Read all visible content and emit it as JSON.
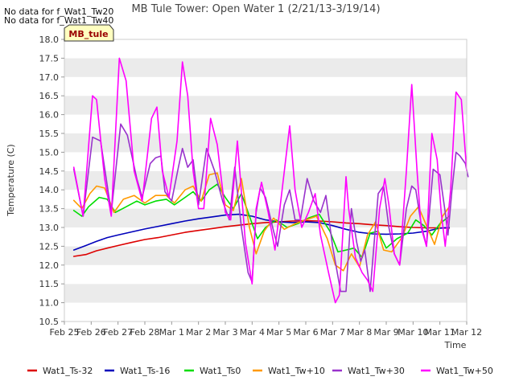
{
  "notes": [
    "No data for f_Wat1_Tw20",
    "No data for f_Wat1_Tw40"
  ],
  "badge": "MB_tule",
  "chart_data": {
    "type": "line",
    "title": "MB Tule Tower: Open Water 1 (2/21/13-3/19/14)",
    "xlabel": "Time",
    "ylabel": "Temperature (C)",
    "ylim": [
      10.5,
      18.0
    ],
    "yticks": [
      "10.5",
      "11.0",
      "11.5",
      "12.0",
      "12.5",
      "13.0",
      "13.5",
      "14.0",
      "14.5",
      "15.0",
      "15.5",
      "16.0",
      "16.5",
      "17.0",
      "17.5",
      "18.0"
    ],
    "xlim": [
      0,
      15
    ],
    "xticks": [
      "Feb 25",
      "Feb 26",
      "Feb 27",
      "Feb 28",
      "Mar 1",
      "Mar 2",
      "Mar 3",
      "Mar 4",
      "Mar 5",
      "Mar 6",
      "Mar 7",
      "Mar 8",
      "Mar 9",
      "Mar 10",
      "Mar 11",
      "Mar 12"
    ],
    "legend_position": "bottom",
    "grid": "horizontal bands",
    "series": [
      {
        "name": "Wat1_Ts-32",
        "color": "#dd0000",
        "points": [
          [
            0.35,
            12.23
          ],
          [
            0.8,
            12.28
          ],
          [
            1.2,
            12.38
          ],
          [
            1.6,
            12.45
          ],
          [
            2.0,
            12.52
          ],
          [
            2.5,
            12.6
          ],
          [
            3.0,
            12.68
          ],
          [
            3.5,
            12.73
          ],
          [
            4.0,
            12.8
          ],
          [
            4.5,
            12.87
          ],
          [
            5.0,
            12.92
          ],
          [
            5.5,
            12.97
          ],
          [
            6.0,
            13.02
          ],
          [
            6.5,
            13.06
          ],
          [
            7.0,
            13.1
          ],
          [
            7.5,
            13.13
          ],
          [
            8.0,
            13.15
          ],
          [
            8.5,
            13.17
          ],
          [
            9.0,
            13.18
          ],
          [
            9.5,
            13.17
          ],
          [
            10.0,
            13.15
          ],
          [
            10.5,
            13.12
          ],
          [
            11.0,
            13.1
          ],
          [
            11.5,
            13.07
          ],
          [
            12.0,
            13.05
          ],
          [
            12.5,
            13.02
          ],
          [
            13.0,
            13.0
          ],
          [
            13.5,
            12.99
          ],
          [
            14.0,
            12.99
          ],
          [
            14.35,
            12.98
          ]
        ]
      },
      {
        "name": "Wat1_Ts-16",
        "color": "#0000bb",
        "points": [
          [
            0.35,
            12.4
          ],
          [
            0.8,
            12.52
          ],
          [
            1.2,
            12.63
          ],
          [
            1.6,
            12.73
          ],
          [
            2.0,
            12.8
          ],
          [
            2.5,
            12.88
          ],
          [
            3.0,
            12.96
          ],
          [
            3.5,
            13.03
          ],
          [
            4.0,
            13.1
          ],
          [
            4.5,
            13.17
          ],
          [
            5.0,
            13.23
          ],
          [
            5.5,
            13.28
          ],
          [
            6.0,
            13.33
          ],
          [
            6.5,
            13.35
          ],
          [
            7.0,
            13.3
          ],
          [
            7.5,
            13.2
          ],
          [
            8.0,
            13.15
          ],
          [
            8.5,
            13.13
          ],
          [
            9.0,
            13.15
          ],
          [
            9.5,
            13.13
          ],
          [
            10.0,
            13.05
          ],
          [
            10.5,
            12.95
          ],
          [
            11.0,
            12.87
          ],
          [
            11.5,
            12.83
          ],
          [
            12.0,
            12.82
          ],
          [
            12.5,
            12.83
          ],
          [
            13.0,
            12.85
          ],
          [
            13.5,
            12.9
          ],
          [
            14.0,
            12.98
          ],
          [
            14.35,
            13.0
          ]
        ]
      },
      {
        "name": "Wat1_Ts0",
        "color": "#00dd00",
        "points": [
          [
            0.35,
            13.45
          ],
          [
            0.65,
            13.3
          ],
          [
            0.9,
            13.55
          ],
          [
            1.3,
            13.8
          ],
          [
            1.6,
            13.75
          ],
          [
            1.9,
            13.4
          ],
          [
            2.3,
            13.55
          ],
          [
            2.7,
            13.7
          ],
          [
            3.0,
            13.6
          ],
          [
            3.4,
            13.7
          ],
          [
            3.8,
            13.75
          ],
          [
            4.1,
            13.6
          ],
          [
            4.5,
            13.8
          ],
          [
            4.8,
            13.95
          ],
          [
            5.1,
            13.7
          ],
          [
            5.4,
            14.0
          ],
          [
            5.7,
            14.15
          ],
          [
            6.0,
            13.8
          ],
          [
            6.3,
            13.5
          ],
          [
            6.6,
            13.9
          ],
          [
            6.9,
            13.3
          ],
          [
            7.2,
            12.7
          ],
          [
            7.5,
            13.0
          ],
          [
            7.9,
            13.2
          ],
          [
            8.3,
            13.0
          ],
          [
            8.7,
            13.1
          ],
          [
            9.1,
            13.25
          ],
          [
            9.5,
            13.35
          ],
          [
            9.9,
            12.9
          ],
          [
            10.2,
            12.35
          ],
          [
            10.5,
            12.4
          ],
          [
            10.8,
            12.45
          ],
          [
            11.1,
            12.2
          ],
          [
            11.4,
            12.85
          ],
          [
            11.7,
            12.9
          ],
          [
            12.0,
            12.45
          ],
          [
            12.4,
            12.7
          ],
          [
            12.8,
            12.85
          ],
          [
            13.1,
            13.2
          ],
          [
            13.4,
            13.05
          ],
          [
            13.7,
            12.8
          ],
          [
            14.0,
            13.1
          ],
          [
            14.35,
            13.3
          ]
        ]
      },
      {
        "name": "Wat1_Tw+10",
        "color": "#ff9900",
        "points": [
          [
            0.35,
            13.72
          ],
          [
            0.65,
            13.5
          ],
          [
            0.95,
            13.9
          ],
          [
            1.2,
            14.1
          ],
          [
            1.5,
            14.05
          ],
          [
            1.85,
            13.4
          ],
          [
            2.2,
            13.75
          ],
          [
            2.6,
            13.85
          ],
          [
            3.0,
            13.65
          ],
          [
            3.4,
            13.85
          ],
          [
            3.8,
            13.85
          ],
          [
            4.1,
            13.65
          ],
          [
            4.5,
            14.0
          ],
          [
            4.8,
            14.1
          ],
          [
            5.1,
            13.7
          ],
          [
            5.4,
            14.4
          ],
          [
            5.7,
            14.45
          ],
          [
            6.0,
            13.6
          ],
          [
            6.3,
            13.45
          ],
          [
            6.6,
            14.3
          ],
          [
            6.9,
            13.0
          ],
          [
            7.15,
            12.3
          ],
          [
            7.45,
            12.9
          ],
          [
            7.8,
            13.25
          ],
          [
            8.2,
            12.95
          ],
          [
            8.6,
            13.1
          ],
          [
            9.0,
            13.2
          ],
          [
            9.4,
            13.3
          ],
          [
            9.8,
            12.7
          ],
          [
            10.1,
            12.0
          ],
          [
            10.4,
            11.85
          ],
          [
            10.7,
            12.3
          ],
          [
            11.0,
            11.95
          ],
          [
            11.3,
            12.8
          ],
          [
            11.6,
            13.15
          ],
          [
            11.9,
            12.4
          ],
          [
            12.2,
            12.35
          ],
          [
            12.6,
            12.75
          ],
          [
            12.9,
            13.3
          ],
          [
            13.2,
            13.55
          ],
          [
            13.5,
            13.05
          ],
          [
            13.8,
            12.55
          ],
          [
            14.1,
            13.3
          ],
          [
            14.35,
            13.55
          ]
        ]
      },
      {
        "name": "Wat1_Tw+30",
        "color": "#9933cc",
        "points": [
          [
            0.35,
            14.55
          ],
          [
            0.7,
            13.3
          ],
          [
            1.05,
            15.4
          ],
          [
            1.35,
            15.3
          ],
          [
            1.75,
            13.4
          ],
          [
            2.1,
            15.75
          ],
          [
            2.35,
            15.45
          ],
          [
            2.7,
            14.3
          ],
          [
            2.9,
            13.8
          ],
          [
            3.2,
            14.7
          ],
          [
            3.4,
            14.85
          ],
          [
            3.6,
            14.9
          ],
          [
            3.75,
            13.95
          ],
          [
            4.0,
            13.7
          ],
          [
            4.25,
            14.6
          ],
          [
            4.4,
            15.1
          ],
          [
            4.6,
            14.6
          ],
          [
            4.8,
            14.8
          ],
          [
            5.0,
            13.6
          ],
          [
            5.3,
            15.1
          ],
          [
            5.6,
            14.5
          ],
          [
            5.9,
            13.7
          ],
          [
            6.15,
            13.2
          ],
          [
            6.35,
            14.6
          ],
          [
            6.6,
            13.0
          ],
          [
            6.85,
            11.8
          ],
          [
            7.0,
            11.55
          ],
          [
            7.15,
            13.4
          ],
          [
            7.3,
            14.05
          ],
          [
            7.5,
            13.8
          ],
          [
            7.8,
            12.9
          ],
          [
            7.95,
            12.5
          ],
          [
            8.2,
            13.6
          ],
          [
            8.4,
            14.0
          ],
          [
            8.6,
            13.2
          ],
          [
            8.8,
            13.2
          ],
          [
            9.05,
            14.3
          ],
          [
            9.3,
            13.7
          ],
          [
            9.55,
            13.4
          ],
          [
            9.75,
            13.85
          ],
          [
            10.0,
            12.5
          ],
          [
            10.3,
            11.3
          ],
          [
            10.5,
            11.3
          ],
          [
            10.7,
            13.5
          ],
          [
            10.9,
            12.6
          ],
          [
            11.05,
            12.1
          ],
          [
            11.2,
            12.4
          ],
          [
            11.4,
            11.3
          ],
          [
            11.7,
            13.9
          ],
          [
            11.9,
            14.1
          ],
          [
            12.1,
            13.0
          ],
          [
            12.3,
            12.3
          ],
          [
            12.5,
            12.0
          ],
          [
            12.75,
            13.5
          ],
          [
            12.95,
            14.1
          ],
          [
            13.1,
            14.0
          ],
          [
            13.3,
            13.1
          ],
          [
            13.5,
            12.5
          ],
          [
            13.75,
            14.55
          ],
          [
            14.0,
            14.4
          ],
          [
            14.2,
            13.4
          ],
          [
            14.3,
            12.8
          ],
          [
            14.45,
            14.0
          ],
          [
            14.6,
            15.0
          ],
          [
            14.75,
            14.9
          ],
          [
            14.95,
            14.7
          ],
          [
            15.05,
            14.35
          ]
        ]
      },
      {
        "name": "Wat1_Tw+50",
        "color": "#ff00ff",
        "points": [
          [
            0.35,
            14.6
          ],
          [
            0.7,
            13.3
          ],
          [
            1.05,
            16.5
          ],
          [
            1.2,
            16.4
          ],
          [
            1.5,
            14.3
          ],
          [
            1.75,
            13.3
          ],
          [
            2.05,
            17.5
          ],
          [
            2.3,
            16.9
          ],
          [
            2.6,
            14.5
          ],
          [
            2.9,
            13.7
          ],
          [
            3.25,
            15.9
          ],
          [
            3.45,
            16.2
          ],
          [
            3.65,
            14.5
          ],
          [
            3.9,
            13.8
          ],
          [
            4.2,
            15.3
          ],
          [
            4.4,
            17.4
          ],
          [
            4.6,
            16.5
          ],
          [
            4.8,
            14.5
          ],
          [
            5.0,
            13.5
          ],
          [
            5.2,
            13.5
          ],
          [
            5.45,
            15.9
          ],
          [
            5.7,
            15.2
          ],
          [
            6.0,
            13.4
          ],
          [
            6.2,
            13.2
          ],
          [
            6.45,
            15.3
          ],
          [
            6.75,
            12.6
          ],
          [
            7.0,
            11.5
          ],
          [
            7.15,
            13.5
          ],
          [
            7.35,
            14.2
          ],
          [
            7.6,
            13.4
          ],
          [
            7.85,
            12.4
          ],
          [
            8.15,
            14.2
          ],
          [
            8.4,
            15.7
          ],
          [
            8.6,
            14.0
          ],
          [
            8.85,
            13.0
          ],
          [
            9.1,
            13.4
          ],
          [
            9.35,
            13.9
          ],
          [
            9.55,
            12.8
          ],
          [
            9.85,
            11.8
          ],
          [
            10.1,
            11.0
          ],
          [
            10.25,
            11.2
          ],
          [
            10.5,
            14.35
          ],
          [
            10.6,
            13.5
          ],
          [
            10.85,
            12.2
          ],
          [
            11.1,
            11.8
          ],
          [
            11.3,
            11.6
          ],
          [
            11.5,
            11.3
          ],
          [
            11.75,
            13.5
          ],
          [
            11.95,
            14.3
          ],
          [
            12.1,
            13.6
          ],
          [
            12.3,
            12.3
          ],
          [
            12.5,
            12.0
          ],
          [
            12.75,
            14.5
          ],
          [
            12.95,
            16.8
          ],
          [
            13.15,
            14.5
          ],
          [
            13.3,
            13.0
          ],
          [
            13.5,
            12.5
          ],
          [
            13.7,
            15.5
          ],
          [
            13.9,
            14.8
          ],
          [
            14.05,
            13.4
          ],
          [
            14.2,
            12.5
          ],
          [
            14.4,
            14.0
          ],
          [
            14.6,
            16.6
          ],
          [
            14.8,
            16.4
          ],
          [
            15.0,
            14.5
          ]
        ]
      }
    ]
  }
}
